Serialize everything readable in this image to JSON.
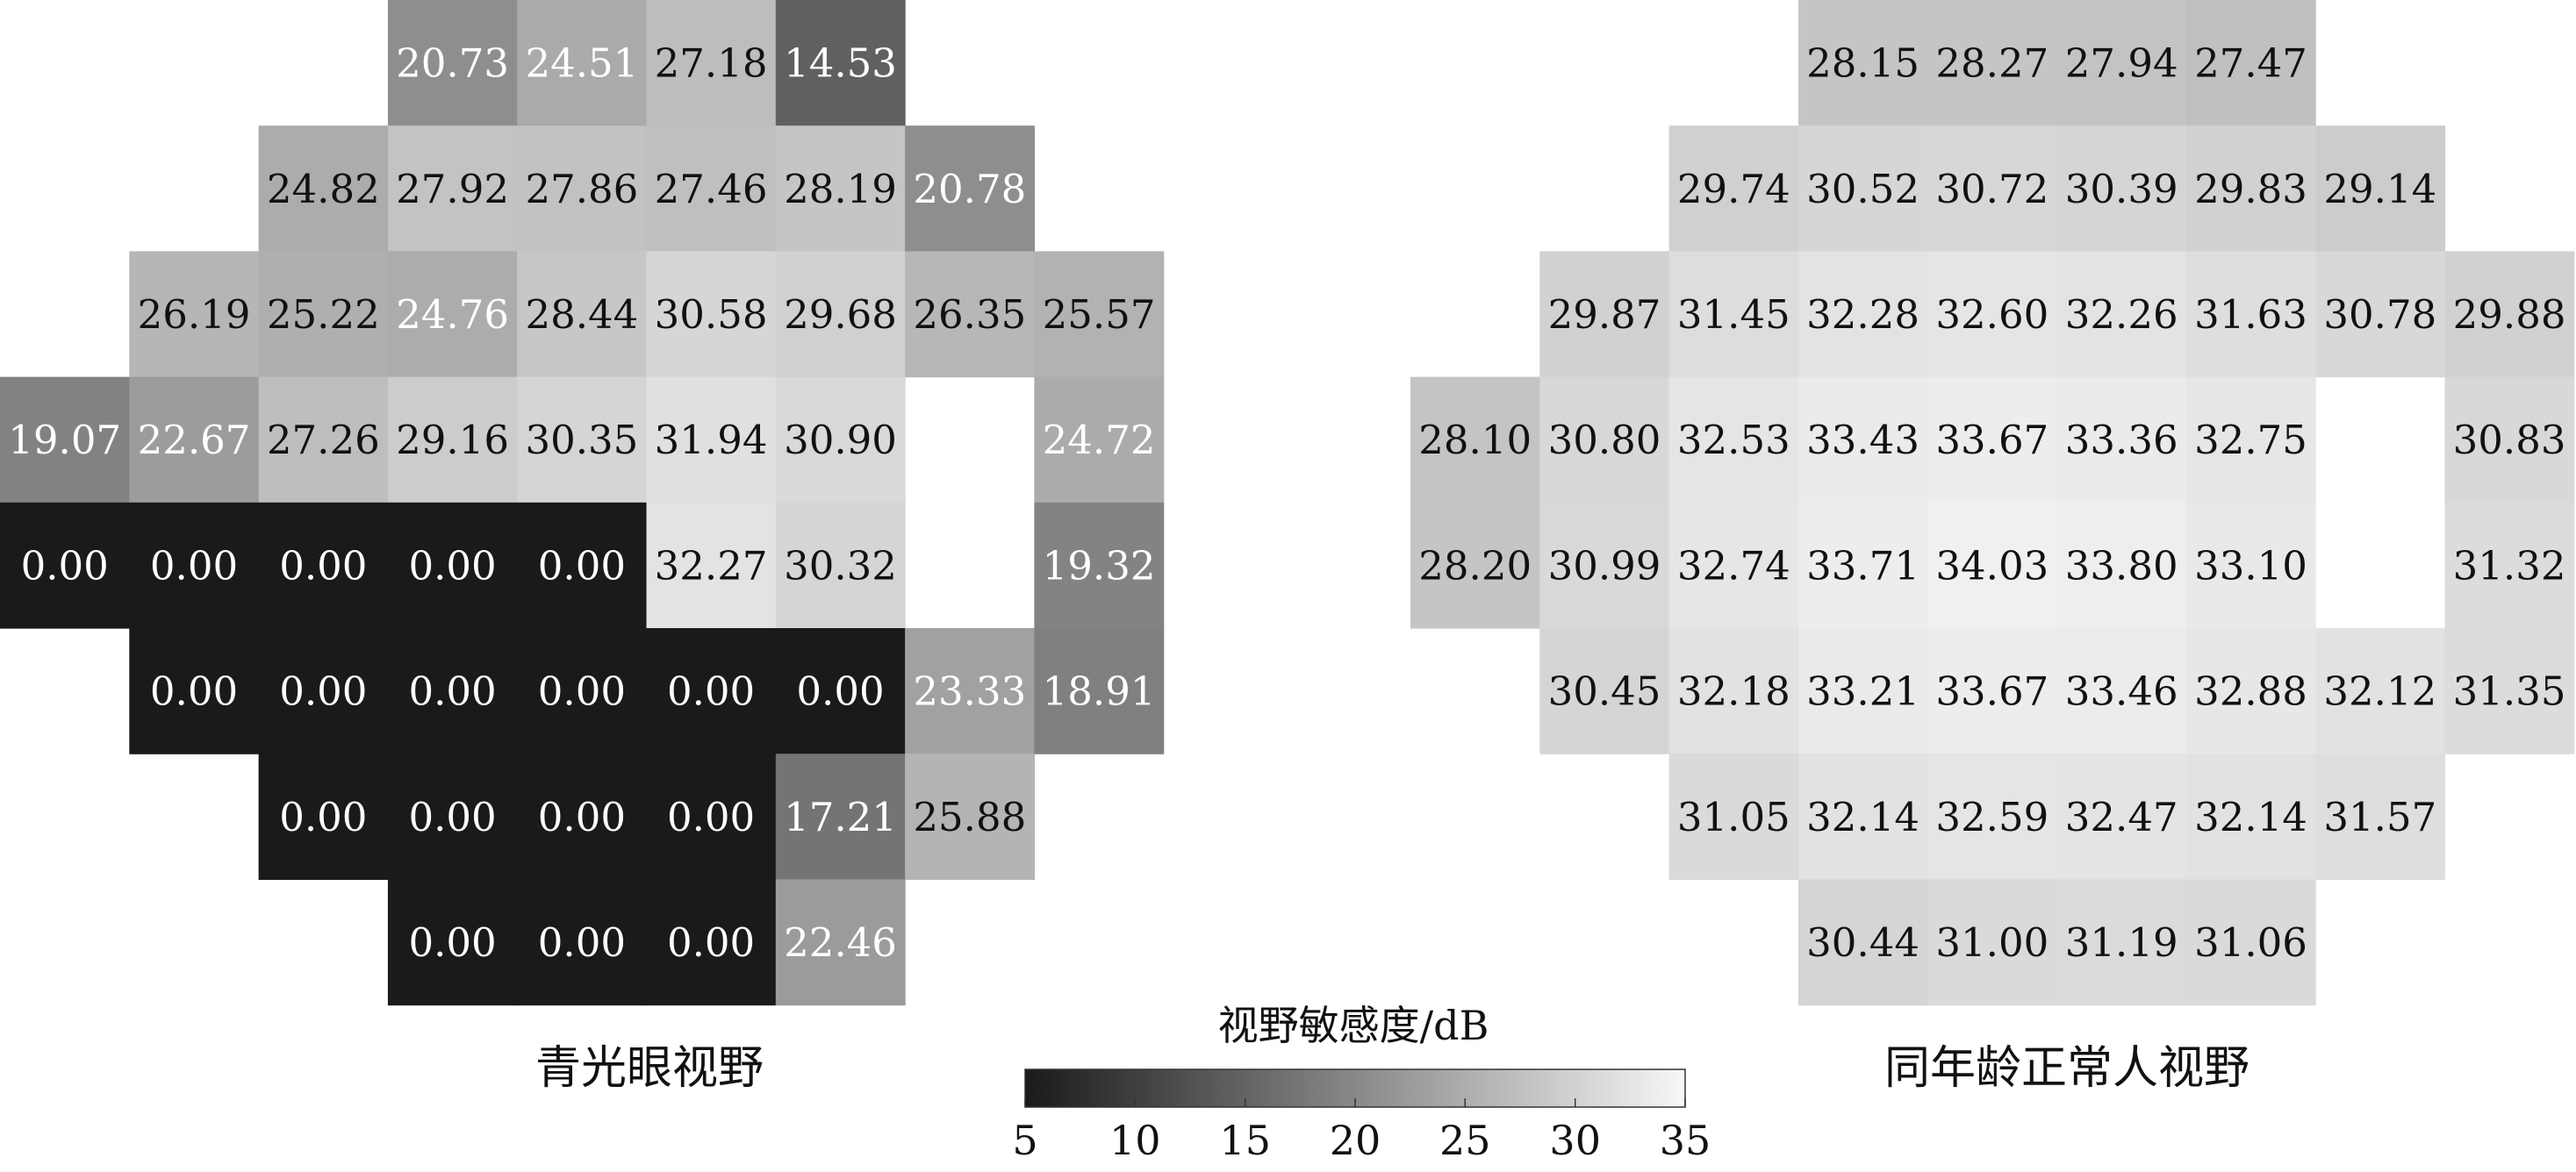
{
  "chart_data": [
    {
      "type": "heatmap",
      "title": "青光眼视野",
      "value_range": [
        5,
        35
      ],
      "rows": [
        [
          null,
          null,
          null,
          20.73,
          24.51,
          27.18,
          14.53,
          null,
          null,
          null
        ],
        [
          null,
          null,
          24.82,
          27.92,
          27.86,
          27.46,
          28.19,
          20.78,
          null,
          null
        ],
        [
          null,
          26.19,
          25.22,
          24.76,
          28.44,
          30.58,
          29.68,
          26.35,
          25.57,
          null
        ],
        [
          19.07,
          22.67,
          27.26,
          29.16,
          30.35,
          31.94,
          30.9,
          null,
          24.72,
          null
        ],
        [
          0.0,
          0.0,
          0.0,
          0.0,
          0.0,
          32.27,
          30.32,
          null,
          19.32,
          null
        ],
        [
          null,
          0.0,
          0.0,
          0.0,
          0.0,
          0.0,
          0.0,
          23.33,
          18.91,
          null
        ],
        [
          null,
          null,
          0.0,
          0.0,
          0.0,
          0.0,
          17.21,
          25.88,
          null,
          null
        ],
        [
          null,
          null,
          null,
          0.0,
          0.0,
          0.0,
          22.46,
          null,
          null,
          null
        ]
      ]
    },
    {
      "type": "heatmap",
      "title": "同年龄正常人视野",
      "value_range": [
        5,
        35
      ],
      "rows": [
        [
          null,
          null,
          null,
          28.15,
          28.27,
          27.94,
          27.47,
          null,
          null,
          null
        ],
        [
          null,
          null,
          29.74,
          30.52,
          30.72,
          30.39,
          29.83,
          29.14,
          null,
          null
        ],
        [
          null,
          29.87,
          31.45,
          32.28,
          32.6,
          32.26,
          31.63,
          30.78,
          29.88,
          null
        ],
        [
          28.1,
          30.8,
          32.53,
          33.43,
          33.67,
          33.36,
          32.75,
          null,
          30.83,
          null
        ],
        [
          28.2,
          30.99,
          32.74,
          33.71,
          34.03,
          33.8,
          33.1,
          null,
          31.32,
          null
        ],
        [
          null,
          30.45,
          32.18,
          33.21,
          33.67,
          33.46,
          32.88,
          32.12,
          31.35,
          null
        ],
        [
          null,
          null,
          31.05,
          32.14,
          32.59,
          32.47,
          32.14,
          31.57,
          null,
          null
        ],
        [
          null,
          null,
          null,
          30.44,
          31.0,
          31.19,
          31.06,
          null,
          null,
          null
        ]
      ]
    }
  ],
  "colorbar": {
    "title": "视野敏感度/dB",
    "min": 5,
    "max": 35,
    "ticks": [
      5,
      10,
      15,
      20,
      25,
      30,
      35
    ],
    "color_low": "#1a1a1a",
    "color_high": "#f7f7f7"
  }
}
